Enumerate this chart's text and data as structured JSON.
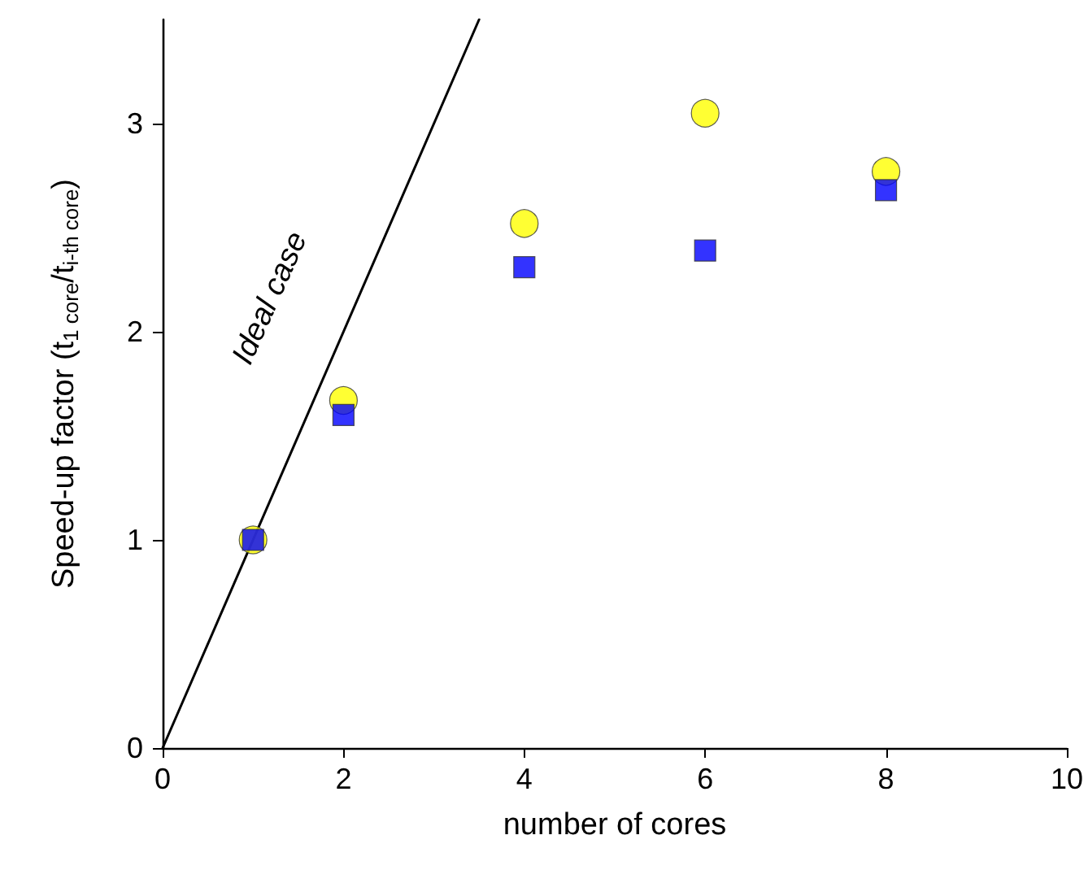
{
  "chart_data": {
    "type": "scatter",
    "xlabel": "number of cores",
    "ylabel": "Speed-up factor (t$_{1 core}$/t$_{i-th core}$)",
    "xlim": [
      0,
      10
    ],
    "xticks": [
      0,
      2,
      4,
      6,
      8,
      10
    ],
    "ylim": [
      0,
      3.5
    ],
    "yticks": [
      0,
      1,
      2,
      3
    ],
    "grid": false,
    "annotations": [
      "Ideal case"
    ],
    "series": [
      {
        "type": "line",
        "color": "#000000",
        "x": [
          0,
          3.5
        ],
        "values": [
          0,
          3.5
        ],
        "marker": "none",
        "line_style": "solid"
      },
      {
        "color": "#ffff00",
        "marker": "circle",
        "x": [
          1,
          2,
          4,
          6,
          8
        ],
        "values": [
          1.0,
          1.67,
          2.52,
          3.05,
          2.77
        ]
      },
      {
        "color": "#0000ff",
        "marker": "square",
        "x": [
          1,
          2,
          4,
          6,
          8
        ],
        "values": [
          1.0,
          1.6,
          2.31,
          2.39,
          2.68
        ]
      }
    ]
  }
}
